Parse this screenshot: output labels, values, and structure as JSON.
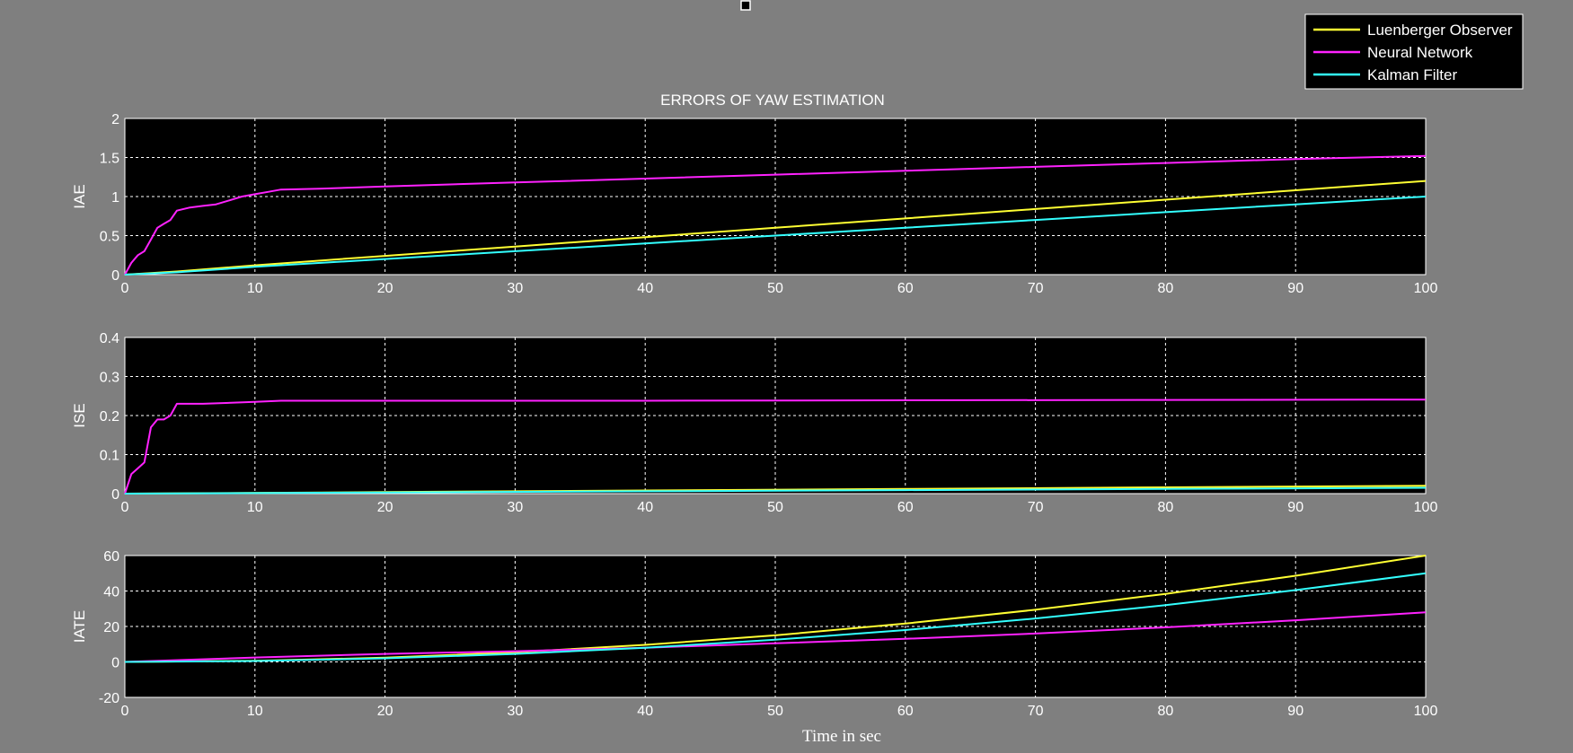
{
  "legend": {
    "items": [
      {
        "label": "Luenberger Observer",
        "color": "#ffff33"
      },
      {
        "label": "Neural Network",
        "color": "#ff22ff"
      },
      {
        "label": "Kalman Filter",
        "color": "#33ffff"
      }
    ]
  },
  "chart_data": [
    {
      "type": "line",
      "title": "ERRORS OF YAW ESTIMATION",
      "xlabel": "",
      "ylabel": "IAE",
      "xlim": [
        0,
        100
      ],
      "ylim": [
        0,
        2
      ],
      "xticks": [
        0,
        10,
        20,
        30,
        40,
        50,
        60,
        70,
        80,
        90,
        100
      ],
      "yticks": [
        0,
        0.5,
        1,
        1.5,
        2
      ],
      "grid": true,
      "series": [
        {
          "name": "Luenberger Observer",
          "color": "#ffff33",
          "x": [
            0,
            4,
            10,
            20,
            30,
            40,
            50,
            60,
            70,
            80,
            90,
            100
          ],
          "y": [
            0,
            0.04,
            0.12,
            0.24,
            0.36,
            0.48,
            0.6,
            0.72,
            0.84,
            0.96,
            1.08,
            1.2
          ]
        },
        {
          "name": "Neural Network",
          "color": "#ff22ff",
          "x": [
            0,
            0.5,
            1,
            1.5,
            2,
            2.5,
            3,
            3.5,
            4,
            5,
            6,
            7,
            8,
            9,
            10,
            11,
            12,
            15,
            20,
            30,
            40,
            50,
            60,
            70,
            80,
            90,
            100
          ],
          "y": [
            0,
            0.15,
            0.25,
            0.3,
            0.45,
            0.6,
            0.65,
            0.7,
            0.82,
            0.86,
            0.88,
            0.9,
            0.95,
            1.0,
            1.03,
            1.06,
            1.09,
            1.1,
            1.13,
            1.18,
            1.23,
            1.28,
            1.33,
            1.38,
            1.43,
            1.48,
            1.52
          ]
        },
        {
          "name": "Kalman Filter",
          "color": "#33ffff",
          "x": [
            0,
            4,
            10,
            20,
            30,
            40,
            50,
            60,
            70,
            80,
            90,
            100
          ],
          "y": [
            0,
            0.03,
            0.1,
            0.2,
            0.3,
            0.4,
            0.5,
            0.6,
            0.7,
            0.8,
            0.9,
            1.0
          ]
        }
      ]
    },
    {
      "type": "line",
      "title": "",
      "xlabel": "",
      "ylabel": "ISE",
      "xlim": [
        0,
        100
      ],
      "ylim": [
        0,
        0.4
      ],
      "xticks": [
        0,
        10,
        20,
        30,
        40,
        50,
        60,
        70,
        80,
        90,
        100
      ],
      "yticks": [
        0,
        0.1,
        0.2,
        0.3,
        0.4
      ],
      "grid": true,
      "series": [
        {
          "name": "Luenberger Observer",
          "color": "#ffff33",
          "x": [
            0,
            20,
            40,
            60,
            80,
            100
          ],
          "y": [
            0,
            0.004,
            0.008,
            0.012,
            0.016,
            0.02
          ]
        },
        {
          "name": "Neural Network",
          "color": "#ff22ff",
          "x": [
            0,
            0.5,
            1,
            1.5,
            2,
            2.5,
            3,
            3.5,
            4,
            6,
            10,
            12,
            20,
            40,
            60,
            80,
            100
          ],
          "y": [
            0,
            0.05,
            0.065,
            0.08,
            0.17,
            0.19,
            0.19,
            0.2,
            0.23,
            0.23,
            0.235,
            0.238,
            0.238,
            0.238,
            0.239,
            0.24,
            0.241
          ]
        },
        {
          "name": "Kalman Filter",
          "color": "#33ffff",
          "x": [
            0,
            20,
            40,
            60,
            80,
            100
          ],
          "y": [
            0,
            0.003,
            0.006,
            0.009,
            0.012,
            0.015
          ]
        }
      ]
    },
    {
      "type": "line",
      "title": "",
      "xlabel": "Time in sec",
      "ylabel": "IATE",
      "xlim": [
        0,
        100
      ],
      "ylim": [
        -20,
        60
      ],
      "xticks": [
        0,
        10,
        20,
        30,
        40,
        50,
        60,
        70,
        80,
        90,
        100
      ],
      "yticks": [
        -20,
        0,
        20,
        40,
        60
      ],
      "grid": true,
      "series": [
        {
          "name": "Luenberger Observer",
          "color": "#ffff33",
          "x": [
            0,
            10,
            20,
            30,
            40,
            50,
            60,
            70,
            80,
            90,
            100
          ],
          "y": [
            0,
            0.6,
            2.4,
            5.4,
            9.6,
            15,
            21.6,
            29.4,
            38.4,
            48.6,
            60
          ]
        },
        {
          "name": "Neural Network",
          "color": "#ff22ff",
          "x": [
            0,
            10,
            20,
            30,
            40,
            50,
            60,
            70,
            80,
            90,
            100
          ],
          "y": [
            0,
            2.5,
            4.5,
            6,
            8,
            10.5,
            13,
            16,
            19.5,
            23.5,
            28
          ]
        },
        {
          "name": "Kalman Filter",
          "color": "#33ffff",
          "x": [
            0,
            10,
            20,
            30,
            40,
            50,
            60,
            70,
            80,
            90,
            100
          ],
          "y": [
            0,
            0.5,
            2,
            4.5,
            8,
            12.5,
            18,
            24.5,
            32,
            40.5,
            50
          ]
        }
      ]
    }
  ]
}
